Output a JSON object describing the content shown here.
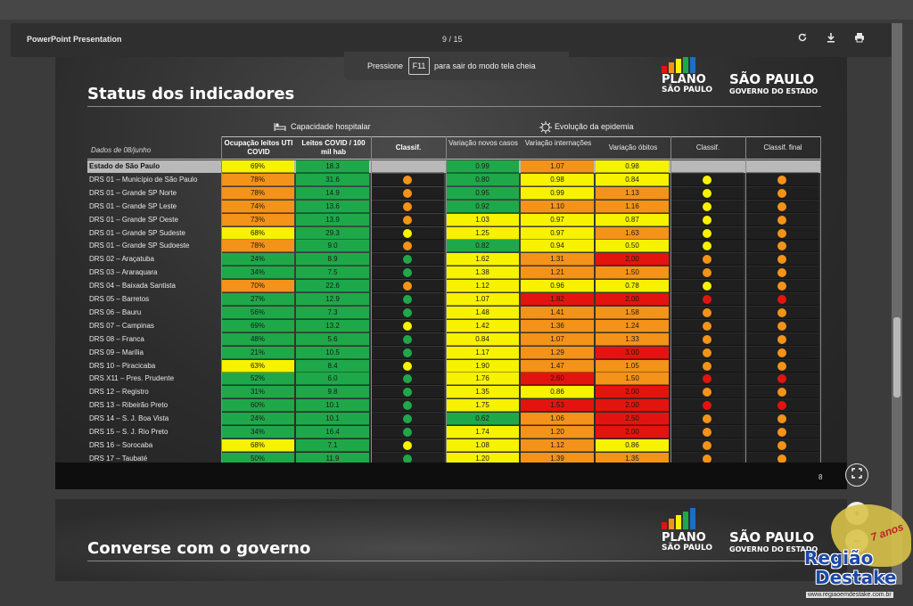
{
  "viewer": {
    "doc_title": "PowerPoint Presentation",
    "page_indicator": "9 / 15",
    "icons": [
      "rotate-icon",
      "download-icon",
      "print-icon"
    ]
  },
  "fullscreen_banner": {
    "prefix": "Pressione",
    "key": "F11",
    "suffix": "para sair do modo tela cheia"
  },
  "slide1": {
    "title": "Status dos indicadores",
    "slide_number": "8",
    "logo_plano": {
      "line1": "PLANO",
      "line2": "SÃO PAULO"
    },
    "logo_gov": {
      "line1": "SÃO PAULO",
      "line2": "GOVERNO DO ESTADO"
    },
    "section_capacity": "Capacidade hospitalar",
    "section_evolution": "Evolução da epidemia",
    "date_label": "Dados de 08/junho",
    "headers": {
      "uti": "Ocupação leitos UTI COVID",
      "leitos": "Leitos COVID / 100 mil hab",
      "classif1": "Classif.",
      "casos": "Variação novos casos",
      "intern": "Variação internações",
      "obitos": "Variação óbitos",
      "classif2": "Classif.",
      "final": "Classif. final"
    },
    "colors": {
      "green": "#1fa84a",
      "yellow": "#f7f200",
      "orange": "#f39319",
      "red": "#e3140f",
      "gray": "#b9b9b9"
    },
    "rows": [
      {
        "name": "Estado de São Paulo",
        "uti": "69%",
        "uti_c": "yellow",
        "leitos": "18.3",
        "leitos_c": "green",
        "c1": "",
        "casos": "0.99",
        "casos_c": "green",
        "intern": "1.07",
        "intern_c": "orange",
        "obitos": "0.98",
        "obitos_c": "yellow",
        "c2": "",
        "final": ""
      },
      {
        "name": "DRS 01 – Município de São Paulo",
        "uti": "78%",
        "uti_c": "orange",
        "leitos": "31.6",
        "leitos_c": "green",
        "c1": "orange",
        "casos": "0.80",
        "casos_c": "green",
        "intern": "0.98",
        "intern_c": "yellow",
        "obitos": "0.84",
        "obitos_c": "yellow",
        "c2": "yellow",
        "final": "orange"
      },
      {
        "name": "DRS 01 – Grande SP Norte",
        "uti": "78%",
        "uti_c": "orange",
        "leitos": "14.9",
        "leitos_c": "green",
        "c1": "orange",
        "casos": "0.95",
        "casos_c": "green",
        "intern": "0.99",
        "intern_c": "yellow",
        "obitos": "1.13",
        "obitos_c": "orange",
        "c2": "yellow",
        "final": "orange"
      },
      {
        "name": "DRS 01 – Grande SP Leste",
        "uti": "74%",
        "uti_c": "orange",
        "leitos": "13.6",
        "leitos_c": "green",
        "c1": "orange",
        "casos": "0.92",
        "casos_c": "green",
        "intern": "1.10",
        "intern_c": "orange",
        "obitos": "1.16",
        "obitos_c": "orange",
        "c2": "yellow",
        "final": "orange"
      },
      {
        "name": "DRS 01 – Grande SP Oeste",
        "uti": "73%",
        "uti_c": "orange",
        "leitos": "13.9",
        "leitos_c": "green",
        "c1": "orange",
        "casos": "1.03",
        "casos_c": "yellow",
        "intern": "0.97",
        "intern_c": "yellow",
        "obitos": "0.87",
        "obitos_c": "yellow",
        "c2": "yellow",
        "final": "orange"
      },
      {
        "name": "DRS 01 – Grande SP Sudeste",
        "uti": "68%",
        "uti_c": "yellow",
        "leitos": "29.3",
        "leitos_c": "green",
        "c1": "yellow",
        "casos": "1.25",
        "casos_c": "yellow",
        "intern": "0.97",
        "intern_c": "yellow",
        "obitos": "1.63",
        "obitos_c": "orange",
        "c2": "yellow",
        "final": "orange"
      },
      {
        "name": "DRS 01 – Grande SP Sudoeste",
        "uti": "78%",
        "uti_c": "orange",
        "leitos": "9.0",
        "leitos_c": "green",
        "c1": "orange",
        "casos": "0.82",
        "casos_c": "green",
        "intern": "0.94",
        "intern_c": "yellow",
        "obitos": "0.50",
        "obitos_c": "yellow",
        "c2": "yellow",
        "final": "orange"
      },
      {
        "name": "DRS 02 – Araçatuba",
        "uti": "24%",
        "uti_c": "green",
        "leitos": "8.9",
        "leitos_c": "green",
        "c1": "green",
        "casos": "1.62",
        "casos_c": "yellow",
        "intern": "1.31",
        "intern_c": "orange",
        "obitos": "2.00",
        "obitos_c": "red",
        "c2": "orange",
        "final": "orange"
      },
      {
        "name": "DRS 03 – Araraquara",
        "uti": "34%",
        "uti_c": "green",
        "leitos": "7.5",
        "leitos_c": "green",
        "c1": "green",
        "casos": "1.38",
        "casos_c": "yellow",
        "intern": "1.21",
        "intern_c": "orange",
        "obitos": "1.50",
        "obitos_c": "orange",
        "c2": "orange",
        "final": "orange"
      },
      {
        "name": "DRS 04 – Baixada Santista",
        "uti": "70%",
        "uti_c": "orange",
        "leitos": "22.6",
        "leitos_c": "green",
        "c1": "orange",
        "casos": "1.12",
        "casos_c": "yellow",
        "intern": "0.96",
        "intern_c": "yellow",
        "obitos": "0.78",
        "obitos_c": "yellow",
        "c2": "yellow",
        "final": "orange"
      },
      {
        "name": "DRS 05 – Barretos",
        "uti": "27%",
        "uti_c": "green",
        "leitos": "12.9",
        "leitos_c": "green",
        "c1": "green",
        "casos": "1.07",
        "casos_c": "yellow",
        "intern": "1.82",
        "intern_c": "red",
        "obitos": "2.00",
        "obitos_c": "red",
        "c2": "red",
        "final": "red"
      },
      {
        "name": "DRS 06 – Bauru",
        "uti": "56%",
        "uti_c": "green",
        "leitos": "7.3",
        "leitos_c": "green",
        "c1": "green",
        "casos": "1.48",
        "casos_c": "yellow",
        "intern": "1.41",
        "intern_c": "orange",
        "obitos": "1.58",
        "obitos_c": "orange",
        "c2": "orange",
        "final": "orange"
      },
      {
        "name": "DRS 07 – Campinas",
        "uti": "69%",
        "uti_c": "green",
        "leitos": "13.2",
        "leitos_c": "green",
        "c1": "yellow",
        "casos": "1.42",
        "casos_c": "yellow",
        "intern": "1.36",
        "intern_c": "orange",
        "obitos": "1.24",
        "obitos_c": "orange",
        "c2": "orange",
        "final": "orange"
      },
      {
        "name": "DRS 08 – Franca",
        "uti": "48%",
        "uti_c": "green",
        "leitos": "5.6",
        "leitos_c": "green",
        "c1": "green",
        "casos": "0.84",
        "casos_c": "yellow",
        "intern": "1.07",
        "intern_c": "orange",
        "obitos": "1.33",
        "obitos_c": "orange",
        "c2": "orange",
        "final": "orange"
      },
      {
        "name": "DRS 09 – Marília",
        "uti": "21%",
        "uti_c": "green",
        "leitos": "10.5",
        "leitos_c": "green",
        "c1": "green",
        "casos": "1.17",
        "casos_c": "yellow",
        "intern": "1.29",
        "intern_c": "orange",
        "obitos": "3.00",
        "obitos_c": "red",
        "c2": "orange",
        "final": "orange"
      },
      {
        "name": "DRS 10 – Piracicaba",
        "uti": "63%",
        "uti_c": "yellow",
        "leitos": "8.4",
        "leitos_c": "green",
        "c1": "yellow",
        "casos": "1.90",
        "casos_c": "yellow",
        "intern": "1.47",
        "intern_c": "orange",
        "obitos": "1.05",
        "obitos_c": "orange",
        "c2": "orange",
        "final": "orange"
      },
      {
        "name": "DRS X11 – Pres. Prudente",
        "uti": "52%",
        "uti_c": "green",
        "leitos": "6.0",
        "leitos_c": "green",
        "c1": "green",
        "casos": "1.76",
        "casos_c": "yellow",
        "intern": "2.60",
        "intern_c": "red",
        "obitos": "1.50",
        "obitos_c": "orange",
        "c2": "red",
        "final": "red"
      },
      {
        "name": "DRS 12 – Registro",
        "uti": "31%",
        "uti_c": "green",
        "leitos": "9.8",
        "leitos_c": "green",
        "c1": "green",
        "casos": "1.35",
        "casos_c": "yellow",
        "intern": "0.86",
        "intern_c": "yellow",
        "obitos": "2.00",
        "obitos_c": "red",
        "c2": "orange",
        "final": "orange"
      },
      {
        "name": "DRS 13 – Ribeirão Preto",
        "uti": "60%",
        "uti_c": "green",
        "leitos": "10.1",
        "leitos_c": "green",
        "c1": "green",
        "casos": "1.75",
        "casos_c": "yellow",
        "intern": "1.53",
        "intern_c": "red",
        "obitos": "2.00",
        "obitos_c": "red",
        "c2": "red",
        "final": "red"
      },
      {
        "name": "DRS 14 – S. J. Boa Vista",
        "uti": "24%",
        "uti_c": "green",
        "leitos": "10.1",
        "leitos_c": "green",
        "c1": "green",
        "casos": "0.62",
        "casos_c": "green",
        "intern": "1.06",
        "intern_c": "orange",
        "obitos": "2.50",
        "obitos_c": "red",
        "c2": "orange",
        "final": "orange"
      },
      {
        "name": "DRS 15 – S. J. Rio Preto",
        "uti": "34%",
        "uti_c": "green",
        "leitos": "16.4",
        "leitos_c": "green",
        "c1": "green",
        "casos": "1.74",
        "casos_c": "yellow",
        "intern": "1.20",
        "intern_c": "orange",
        "obitos": "2.00",
        "obitos_c": "red",
        "c2": "orange",
        "final": "orange"
      },
      {
        "name": "DRS 16 – Sorocaba",
        "uti": "68%",
        "uti_c": "yellow",
        "leitos": "7.1",
        "leitos_c": "green",
        "c1": "yellow",
        "casos": "1.08",
        "casos_c": "yellow",
        "intern": "1.12",
        "intern_c": "orange",
        "obitos": "0.86",
        "obitos_c": "yellow",
        "c2": "orange",
        "final": "orange"
      },
      {
        "name": "DRS 17 – Taubaté",
        "uti": "50%",
        "uti_c": "green",
        "leitos": "11.9",
        "leitos_c": "green",
        "c1": "green",
        "casos": "1.20",
        "casos_c": "yellow",
        "intern": "1.39",
        "intern_c": "orange",
        "obitos": "1.35",
        "obitos_c": "orange",
        "c2": "orange",
        "final": "orange"
      }
    ]
  },
  "slide2": {
    "title": "Converse com o governo",
    "logo_plano": {
      "line1": "PLANO",
      "line2": "SÃO PAULO"
    },
    "logo_gov": {
      "line1": "SÃO PAULO",
      "line2": "GOVERNO DO ESTADO"
    }
  },
  "watermark": {
    "line1": "Região",
    "line2": "Destake",
    "anos": "7 anos",
    "url": "www.regiaoemdestake.com.br"
  }
}
